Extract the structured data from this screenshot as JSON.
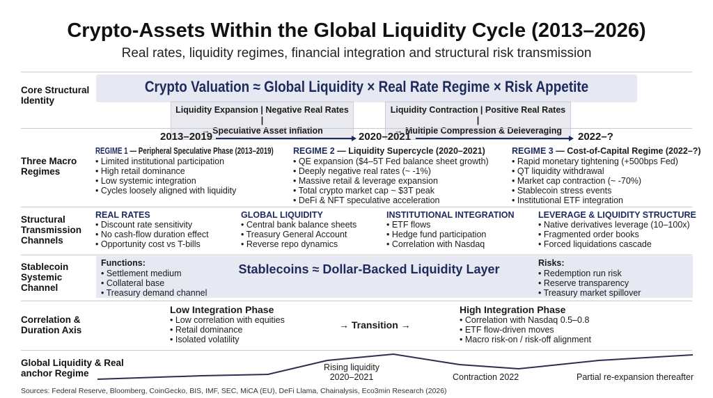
{
  "title": "Crypto-Assets Within the Global Liquidity Cycle (2013–2026)",
  "subtitle": "Real rates, liquidity regimes, financial integration and structural risk transmission",
  "core": {
    "label": "Core Structural Identity",
    "formula": "Crypto Valuation ≈ Global Liquidity × Real Rate Regime × Risk Appetite",
    "box1": [
      "Liquidity Expansion | Negative Real Rates |",
      "→ Speculative Asset Inflation"
    ],
    "box2": [
      "Liquidity Contraction | Positive Real Rates |",
      "→ Multiple Compression & Deleveraging"
    ]
  },
  "regimes": {
    "label": "Three Macro Regimes",
    "years": [
      "2013–2019",
      "2020–2021",
      "2022–?"
    ],
    "items": [
      {
        "tag": "REGIME 1",
        "title": " — Peripheral Speculative Phase (2013–2019)",
        "bullets": [
          "Limited institutional participation",
          "High retail dominance",
          "Low systemic integration",
          "Cycles loosely aligned with liquidity"
        ]
      },
      {
        "tag": "REGIME 2",
        "title": " — Liquidity Supercycle (2020–2021)",
        "bullets": [
          "QE expansion ($4–5T Fed balance sheet growth)",
          "Deeply negative real rates (~ -1%)",
          "Massive retail & leverage expansion",
          "Total crypto market cap ~ $3T peak",
          "DeFi & NFT speculative acceleration"
        ]
      },
      {
        "tag": "REGIME 3",
        "title": " — Cost-of-Capital Regime (2022–?)",
        "bullets": [
          "Rapid monetary tightening (+500bps Fed)",
          "QT liquidity withdrawal",
          "Market cap contraction (~ -70%)",
          "Stablecoin stress events",
          "Institutional ETF integration"
        ]
      }
    ]
  },
  "channels": {
    "label": "Structural Transmission Channels",
    "items": [
      {
        "title": "REAL RATES",
        "bullets": [
          "Discount rate sensitivity",
          "No cash-flow duration effect",
          "Opportunity cost vs T-bills"
        ]
      },
      {
        "title": "GLOBAL LIQUIDITY",
        "bullets": [
          "Central bank balance sheets",
          "Treasury General Account",
          "Reverse repo dynamics"
        ]
      },
      {
        "title": "INSTITUTIONAL INTEGRATION",
        "bullets": [
          "ETF flows",
          "Hedge fund participation",
          "Correlation with Nasdaq"
        ]
      },
      {
        "title": "LEVERAGE & LIQUIDITY STRUCTURE",
        "bullets": [
          "Native derivatives leverage (10–100x)",
          "Fragmented order books",
          "Forced liquidations cascade"
        ]
      }
    ]
  },
  "stablecoin": {
    "label": "Stablecoin Systemic Channel",
    "functions_title": "Functions:",
    "functions": [
      "Settlement medium",
      "Collateral base",
      "Treasury demand channel"
    ],
    "center": "Stablecoins ≈ Dollar-Backed Liquidity Layer",
    "risks_title": "Risks:",
    "risks": [
      "Redemption run risk",
      "Reserve transparency",
      "Treasury market spillover"
    ]
  },
  "correlation": {
    "label": "Correlation & Duration Axis",
    "low_title": "Low Integration Phase",
    "low": [
      "Low correlation with equities",
      "Retail dominance",
      "Isolated volatility"
    ],
    "transition": "→ Transition →",
    "high_title": "High Integration Phase",
    "high": [
      "Correlation with Nasdaq 0.5–0.8",
      "ETF flow-driven moves",
      "Macro risk-on / risk-off alignment"
    ]
  },
  "liquidity": {
    "label": "Global Liquidity & Real anchor Regime",
    "rising": [
      "Rising liquidity",
      "2020–2021"
    ],
    "contraction": "Contraction 2022",
    "reexp": "Partial re-expansion thereafter"
  },
  "sources": "Sources: Federal Reserve, Bloomberg, CoinGecko, BIS, IMF, SEC, MiCA (EU), DeFi Llama, Chainalysis, Eco3min Research (2026)",
  "colors": {
    "accent": "#1f2a5c",
    "panel": "#e6e8f2"
  }
}
